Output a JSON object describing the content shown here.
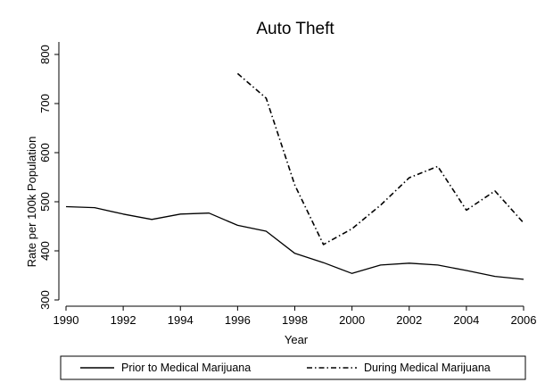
{
  "chart_data": {
    "type": "line",
    "title": "Auto Theft",
    "xlabel": "Year",
    "ylabel": "Rate per 100k Population",
    "xlim": [
      1990,
      2006
    ],
    "ylim": [
      300,
      800
    ],
    "xticks": [
      1990,
      1992,
      1994,
      1996,
      1998,
      2000,
      2002,
      2004,
      2006
    ],
    "yticks": [
      300,
      400,
      500,
      600,
      700,
      800
    ],
    "grid": false,
    "legend_position": "bottom",
    "series": [
      {
        "name": "Prior to Medical Marijuana",
        "style": "solid",
        "color": "#000000",
        "x": [
          1990,
          1991,
          1992,
          1993,
          1994,
          1995,
          1996,
          1997,
          1998,
          1999,
          2000,
          2001,
          2002,
          2003,
          2004,
          2005,
          2006
        ],
        "y": [
          490,
          488,
          475,
          464,
          475,
          477,
          452,
          440,
          395,
          376,
          354,
          371,
          375,
          371,
          360,
          348,
          342
        ]
      },
      {
        "name": "During Medical Marijuana",
        "style": "dash-dot",
        "color": "#000000",
        "x": [
          1996,
          1997,
          1998,
          1999,
          2000,
          2001,
          2002,
          2003,
          2004,
          2005,
          2006
        ],
        "y": [
          761,
          711,
          534,
          413,
          445,
          493,
          549,
          572,
          483,
          522,
          457
        ]
      }
    ]
  }
}
